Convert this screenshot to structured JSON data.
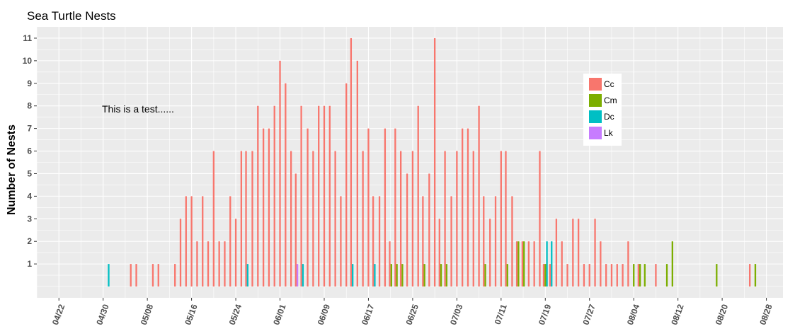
{
  "chart_data": {
    "type": "bar",
    "title": "Sea Turtle Nests",
    "xlabel": "",
    "ylabel": "Number of Nests",
    "x_start": "2016-04-18",
    "x_end": "2016-08-31",
    "ylim": [
      -0.5,
      11.5
    ],
    "yticks": [
      1,
      2,
      3,
      4,
      5,
      6,
      7,
      8,
      9,
      10,
      11
    ],
    "xtick_dates": [
      "2016-04-22",
      "2016-04-30",
      "2016-05-08",
      "2016-05-16",
      "2016-05-24",
      "2016-06-01",
      "2016-06-09",
      "2016-06-17",
      "2016-06-25",
      "2016-07-03",
      "2016-07-11",
      "2016-07-19",
      "2016-07-27",
      "2016-08-04",
      "2016-08-12",
      "2016-08-20",
      "2016-08-28"
    ],
    "xtick_labels": [
      "04/22",
      "04/30",
      "05/08",
      "05/16",
      "05/24",
      "06/01",
      "06/09",
      "06/17",
      "06/25",
      "07/03",
      "07/11",
      "07/19",
      "07/27",
      "08/04",
      "08/12",
      "08/20",
      "08/28"
    ],
    "grid": true,
    "legend_position": "top-right",
    "annotation": "This is a test......",
    "series": [
      {
        "name": "Cc",
        "color": "#F8766D",
        "points": [
          [
            "2016-05-05",
            1
          ],
          [
            "2016-05-06",
            1
          ],
          [
            "2016-05-09",
            1
          ],
          [
            "2016-05-10",
            1
          ],
          [
            "2016-05-13",
            1
          ],
          [
            "2016-05-14",
            3
          ],
          [
            "2016-05-15",
            4
          ],
          [
            "2016-05-16",
            4
          ],
          [
            "2016-05-17",
            2
          ],
          [
            "2016-05-18",
            4
          ],
          [
            "2016-05-19",
            2
          ],
          [
            "2016-05-20",
            6
          ],
          [
            "2016-05-21",
            2
          ],
          [
            "2016-05-22",
            2
          ],
          [
            "2016-05-23",
            4
          ],
          [
            "2016-05-24",
            3
          ],
          [
            "2016-05-25",
            6
          ],
          [
            "2016-05-26",
            6
          ],
          [
            "2016-05-27",
            6
          ],
          [
            "2016-05-28",
            8
          ],
          [
            "2016-05-29",
            7
          ],
          [
            "2016-05-30",
            7
          ],
          [
            "2016-05-31",
            8
          ],
          [
            "2016-06-01",
            10
          ],
          [
            "2016-06-02",
            9
          ],
          [
            "2016-06-03",
            6
          ],
          [
            "2016-06-04",
            5
          ],
          [
            "2016-06-05",
            8
          ],
          [
            "2016-06-06",
            7
          ],
          [
            "2016-06-07",
            6
          ],
          [
            "2016-06-08",
            8
          ],
          [
            "2016-06-09",
            8
          ],
          [
            "2016-06-10",
            8
          ],
          [
            "2016-06-11",
            6
          ],
          [
            "2016-06-12",
            4
          ],
          [
            "2016-06-13",
            9
          ],
          [
            "2016-06-14",
            11
          ],
          [
            "2016-06-15",
            10
          ],
          [
            "2016-06-16",
            6
          ],
          [
            "2016-06-17",
            7
          ],
          [
            "2016-06-18",
            4
          ],
          [
            "2016-06-19",
            4
          ],
          [
            "2016-06-20",
            7
          ],
          [
            "2016-06-21",
            2
          ],
          [
            "2016-06-22",
            7
          ],
          [
            "2016-06-23",
            6
          ],
          [
            "2016-06-24",
            5
          ],
          [
            "2016-06-25",
            6
          ],
          [
            "2016-06-26",
            8
          ],
          [
            "2016-06-27",
            4
          ],
          [
            "2016-06-28",
            5
          ],
          [
            "2016-06-29",
            11
          ],
          [
            "2016-06-30",
            3
          ],
          [
            "2016-07-01",
            6
          ],
          [
            "2016-07-02",
            4
          ],
          [
            "2016-07-03",
            6
          ],
          [
            "2016-07-04",
            7
          ],
          [
            "2016-07-05",
            7
          ],
          [
            "2016-07-06",
            6
          ],
          [
            "2016-07-07",
            8
          ],
          [
            "2016-07-08",
            4
          ],
          [
            "2016-07-09",
            3
          ],
          [
            "2016-07-10",
            4
          ],
          [
            "2016-07-11",
            6
          ],
          [
            "2016-07-12",
            6
          ],
          [
            "2016-07-13",
            4
          ],
          [
            "2016-07-14",
            2
          ],
          [
            "2016-07-15",
            2
          ],
          [
            "2016-07-16",
            2
          ],
          [
            "2016-07-17",
            2
          ],
          [
            "2016-07-18",
            6
          ],
          [
            "2016-07-19",
            1
          ],
          [
            "2016-07-20",
            1
          ],
          [
            "2016-07-21",
            3
          ],
          [
            "2016-07-22",
            2
          ],
          [
            "2016-07-23",
            1
          ],
          [
            "2016-07-24",
            3
          ],
          [
            "2016-07-25",
            3
          ],
          [
            "2016-07-26",
            1
          ],
          [
            "2016-07-27",
            1
          ],
          [
            "2016-07-28",
            3
          ],
          [
            "2016-07-29",
            2
          ],
          [
            "2016-07-30",
            1
          ],
          [
            "2016-07-31",
            1
          ],
          [
            "2016-08-01",
            1
          ],
          [
            "2016-08-02",
            1
          ],
          [
            "2016-08-03",
            2
          ],
          [
            "2016-08-05",
            1
          ],
          [
            "2016-08-08",
            1
          ],
          [
            "2016-08-25",
            1
          ]
        ]
      },
      {
        "name": "Cm",
        "color": "#7CAE00",
        "points": [
          [
            "2016-06-21",
            1
          ],
          [
            "2016-06-22",
            1
          ],
          [
            "2016-06-23",
            1
          ],
          [
            "2016-06-27",
            1
          ],
          [
            "2016-06-30",
            1
          ],
          [
            "2016-07-01",
            1
          ],
          [
            "2016-07-08",
            1
          ],
          [
            "2016-07-12",
            1
          ],
          [
            "2016-07-14",
            2
          ],
          [
            "2016-07-15",
            2
          ],
          [
            "2016-07-19",
            1
          ],
          [
            "2016-08-04",
            1
          ],
          [
            "2016-08-05",
            1
          ],
          [
            "2016-08-06",
            1
          ],
          [
            "2016-08-10",
            1
          ],
          [
            "2016-08-11",
            2
          ],
          [
            "2016-08-19",
            1
          ],
          [
            "2016-08-26",
            1
          ]
        ]
      },
      {
        "name": "Dc",
        "color": "#00BFC4",
        "points": [
          [
            "2016-05-01",
            1
          ],
          [
            "2016-05-26",
            1
          ],
          [
            "2016-06-05",
            1
          ],
          [
            "2016-06-14",
            1
          ],
          [
            "2016-06-18",
            1
          ],
          [
            "2016-07-19",
            2
          ],
          [
            "2016-07-20",
            2
          ]
        ]
      },
      {
        "name": "Lk",
        "color": "#C77CFF",
        "points": [
          [
            "2016-06-04",
            1
          ]
        ]
      }
    ]
  }
}
